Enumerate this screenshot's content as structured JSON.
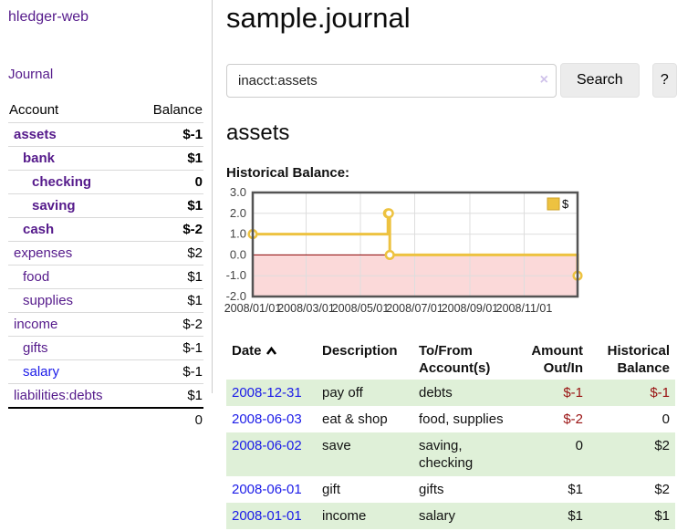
{
  "app": {
    "brand": "hledger-web",
    "nav_journal_label": "Journal"
  },
  "colors": {
    "link_purple": "#551a8b",
    "link_blue": "#1b1be8",
    "negative_strong": "#991111",
    "negative_soft": "#bc6c6c",
    "row_stripe_green": "#dff0d8",
    "chart_line_gold": "#edc240",
    "chart_negative_fill": "#fbd9d9",
    "chart_zero_line": "#8b0000"
  },
  "sidebar": {
    "headers": {
      "account": "Account",
      "balance": "Balance"
    },
    "accounts": [
      {
        "name": "assets",
        "indent": 1,
        "bold": true,
        "unvisited": false,
        "balance": "$-1",
        "balance_style": "neg-strong"
      },
      {
        "name": "bank",
        "indent": 2,
        "bold": true,
        "unvisited": false,
        "balance": "$1",
        "balance_style": "pos"
      },
      {
        "name": "checking",
        "indent": 3,
        "bold": true,
        "unvisited": false,
        "balance": "0",
        "balance_style": "pos"
      },
      {
        "name": "saving",
        "indent": 3,
        "bold": true,
        "unvisited": false,
        "balance": "$1",
        "balance_style": "pos"
      },
      {
        "name": "cash",
        "indent": 2,
        "bold": true,
        "unvisited": false,
        "balance": "$-2",
        "balance_style": "neg-strong"
      },
      {
        "name": "expenses",
        "indent": 1,
        "bold": false,
        "unvisited": false,
        "balance": "$2",
        "balance_style": "pos"
      },
      {
        "name": "food",
        "indent": 2,
        "bold": false,
        "unvisited": false,
        "balance": "$1",
        "balance_style": "pos"
      },
      {
        "name": "supplies",
        "indent": 2,
        "bold": false,
        "unvisited": false,
        "balance": "$1",
        "balance_style": "pos"
      },
      {
        "name": "income",
        "indent": 1,
        "bold": false,
        "unvisited": false,
        "balance": "$-2",
        "balance_style": "neg-soft"
      },
      {
        "name": "gifts",
        "indent": 2,
        "bold": false,
        "unvisited": false,
        "balance": "$-1",
        "balance_style": "neg-soft"
      },
      {
        "name": "salary",
        "indent": 2,
        "bold": false,
        "unvisited": true,
        "balance": "$-1",
        "balance_style": "neg-soft"
      },
      {
        "name": "liabilities:debts",
        "indent": 1,
        "bold": false,
        "unvisited": false,
        "balance": "$1",
        "balance_style": "pos"
      }
    ],
    "total": "0"
  },
  "header": {
    "title": "sample.journal"
  },
  "search": {
    "value": "inacct:assets",
    "clear_glyph": "×",
    "button_label": "Search",
    "help_label": "?"
  },
  "main": {
    "account_heading": "assets",
    "chart_title": "Historical Balance:"
  },
  "chart_data": {
    "type": "line",
    "title": "Historical Balance:",
    "step": true,
    "series": [
      {
        "name": "$",
        "color": "#edc240",
        "points": [
          [
            "2008-01-01",
            1
          ],
          [
            "2008-06-01",
            2
          ],
          [
            "2008-06-02",
            2
          ],
          [
            "2008-06-03",
            0
          ],
          [
            "2008-12-31",
            -1
          ]
        ]
      }
    ],
    "x_range": [
      "2008-01-01",
      "2008-12-31"
    ],
    "x_ticks": [
      "2008/01/01",
      "2008/03/01",
      "2008/05/01",
      "2008/07/01",
      "2008/09/01",
      "2008/11/01"
    ],
    "y_ticks": [
      3.0,
      2.0,
      1.0,
      0.0,
      -1.0,
      -2.0
    ],
    "ylim": [
      -2,
      3
    ],
    "grid": true,
    "legend": {
      "label": "$",
      "position": "top-right"
    },
    "negative_region_fill": "#fbd9d9",
    "zero_line_color": "#8b0000"
  },
  "register": {
    "headers": {
      "date": "Date",
      "description": "Description",
      "accounts": "To/From Account(s)",
      "amount": "Amount Out/In",
      "balance": "Historical Balance"
    },
    "rows": [
      {
        "date": "2008-12-31",
        "description": "pay off",
        "accounts": "debts",
        "amount": "$-1",
        "amount_neg": true,
        "balance": "$-1",
        "balance_neg": true,
        "shaded": true
      },
      {
        "date": "2008-06-03",
        "description": "eat & shop",
        "accounts": "food, supplies",
        "amount": "$-2",
        "amount_neg": true,
        "balance": "0",
        "balance_neg": false,
        "shaded": false
      },
      {
        "date": "2008-06-02",
        "description": "save",
        "accounts": "saving, checking",
        "amount": "0",
        "amount_neg": false,
        "balance": "$2",
        "balance_neg": false,
        "shaded": true
      },
      {
        "date": "2008-06-01",
        "description": "gift",
        "accounts": "gifts",
        "amount": "$1",
        "amount_neg": false,
        "balance": "$2",
        "balance_neg": false,
        "shaded": false
      },
      {
        "date": "2008-01-01",
        "description": "income",
        "accounts": "salary",
        "amount": "$1",
        "amount_neg": false,
        "balance": "$1",
        "balance_neg": false,
        "shaded": true
      }
    ]
  }
}
